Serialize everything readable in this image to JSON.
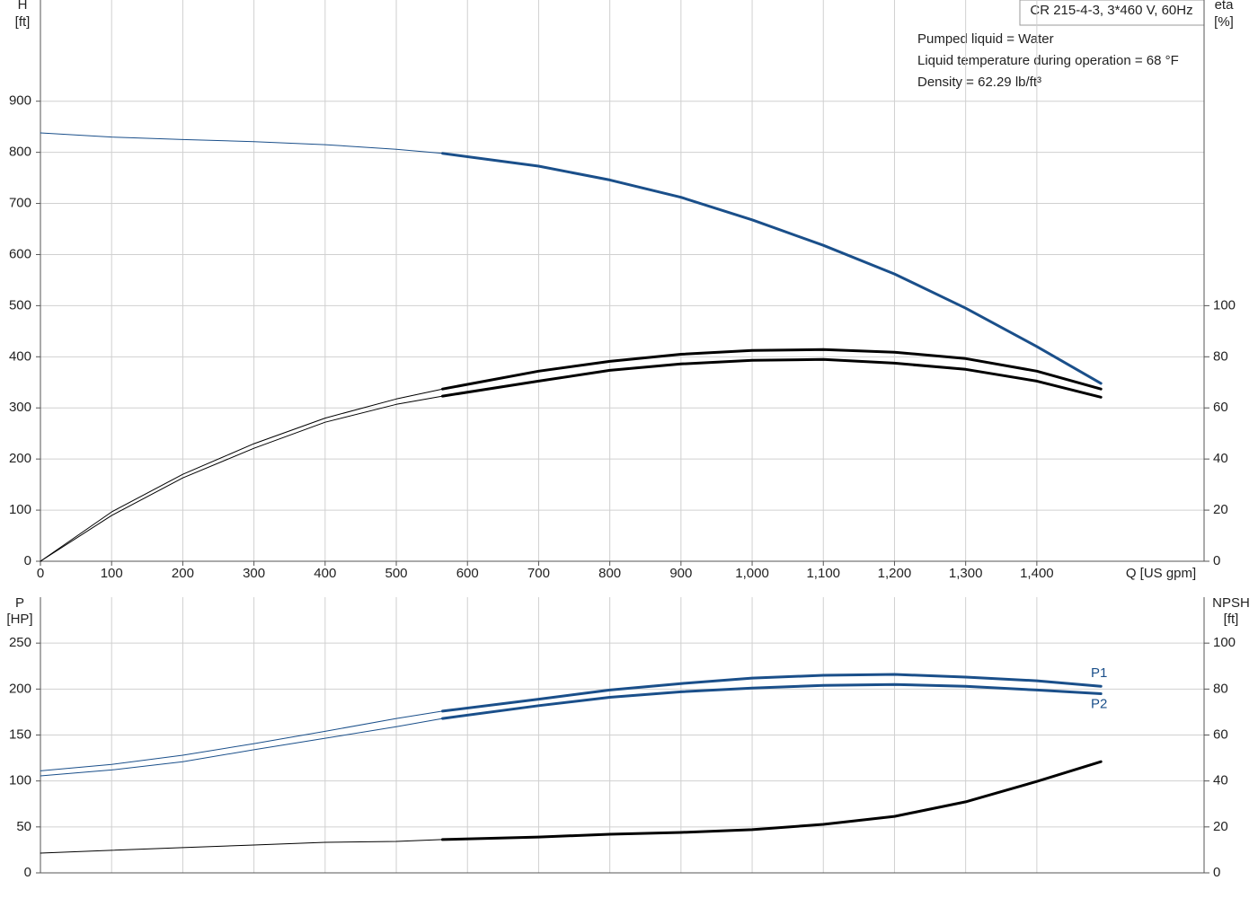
{
  "chart_data": [
    {
      "type": "line",
      "title": "CR 215-4-3, 3*460 V, 60Hz",
      "notes": [
        "Pumped liquid = Water",
        "Liquid temperature during operation = 68 °F",
        "Density = 62.29 lb/ft³"
      ],
      "ylabel": "H",
      "yunit": "[ft]",
      "y2label": "eta",
      "y2unit": "[%]",
      "xlabel": "Q [US gpm]",
      "xlim": [
        0,
        1635
      ],
      "xticks": [
        0,
        100,
        200,
        300,
        400,
        500,
        600,
        700,
        800,
        900,
        {
          "value": 1000,
          "label": "1,000"
        },
        {
          "value": 1100,
          "label": "1,100"
        },
        {
          "value": 1200,
          "label": "1,200"
        },
        {
          "value": 1300,
          "label": "1,300"
        },
        {
          "value": 1400,
          "label": "1,400"
        }
      ],
      "ylim": [
        0,
        1098
      ],
      "yticks": [
        0,
        100,
        200,
        300,
        400,
        500,
        600,
        700,
        800,
        900
      ],
      "y2lim": [
        0,
        219.6
      ],
      "y2ticks": [
        0,
        20,
        40,
        60,
        80,
        100
      ],
      "grid": true,
      "operating_from": 565,
      "x": [
        0,
        100,
        200,
        300,
        400,
        500,
        565,
        700,
        800,
        900,
        1000,
        1100,
        1200,
        1300,
        1400,
        1490
      ],
      "series": [
        {
          "color": "#1a4f8a",
          "axis": "y",
          "values": [
            838,
            830,
            825,
            821,
            815,
            806,
            798,
            773,
            746,
            712,
            668,
            618,
            562,
            495,
            420,
            348
          ]
        },
        {
          "color": "#000000",
          "axis": "y2",
          "values": [
            0,
            19.3,
            34,
            46,
            56,
            63.5,
            67.4,
            74.4,
            78.2,
            81,
            82.5,
            82.8,
            81.8,
            79.3,
            74.4,
            67.4
          ]
        },
        {
          "color": "#000000",
          "axis": "y2",
          "values": [
            0,
            17.9,
            32.6,
            44.2,
            54.4,
            61.4,
            64.6,
            70.5,
            74.7,
            77.2,
            78.6,
            79,
            77.5,
            75.1,
            70.5,
            64.2
          ]
        }
      ]
    },
    {
      "type": "line",
      "ylabel": "P",
      "yunit": "[HP]",
      "y2label": "NPSH",
      "y2unit": "[ft]",
      "xlim": [
        0,
        1635
      ],
      "ylim": [
        0,
        300
      ],
      "yticks": [
        0,
        50,
        100,
        150,
        200,
        250
      ],
      "y2lim": [
        0,
        120
      ],
      "y2ticks": [
        0,
        20,
        40,
        60,
        80,
        100
      ],
      "grid": true,
      "operating_from": 565,
      "x": [
        0,
        100,
        200,
        300,
        400,
        500,
        565,
        700,
        800,
        900,
        1000,
        1100,
        1200,
        1300,
        1400,
        1490
      ],
      "series": [
        {
          "name": "P1",
          "color": "#1a4f8a",
          "axis": "y",
          "values": [
            111,
            118,
            128,
            140.6,
            154,
            168,
            176,
            189,
            199,
            206,
            212,
            215,
            216,
            213,
            209,
            203
          ]
        },
        {
          "name": "P2",
          "color": "#1a4f8a",
          "axis": "y",
          "values": [
            105.5,
            112,
            121,
            134,
            146.5,
            159,
            168,
            182,
            191,
            197,
            201,
            204,
            205,
            203,
            199,
            195
          ]
        },
        {
          "color": "#000000",
          "axis": "y2",
          "values": [
            8.6,
            9.8,
            11,
            12.1,
            13.3,
            13.7,
            14.5,
            15.6,
            16.8,
            17.6,
            18.8,
            21.1,
            24.6,
            30.9,
            39.8,
            48.4
          ]
        }
      ]
    }
  ]
}
